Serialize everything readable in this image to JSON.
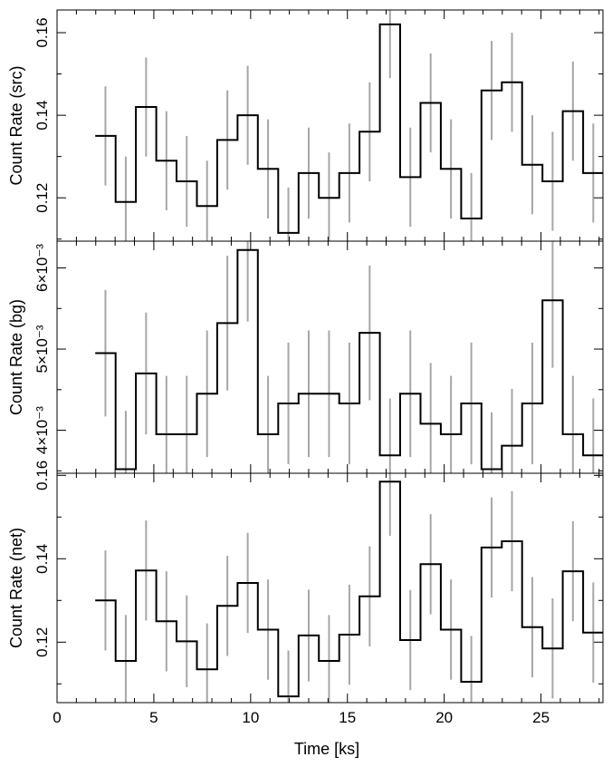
{
  "chart_data": {
    "type": "line",
    "style": "step-histogram-with-error-bars",
    "x_axis": {
      "label": "Time [ks]",
      "range": [
        0,
        28.2
      ],
      "major_ticks": [
        0,
        5,
        10,
        15,
        20,
        25
      ],
      "tick_labels": [
        "0",
        "5",
        "10",
        "15",
        "20",
        "25"
      ]
    },
    "bin_width": 1.05,
    "x": [
      2.5,
      3.55,
      4.6,
      5.65,
      6.7,
      7.75,
      8.8,
      9.85,
      10.9,
      11.95,
      13.0,
      14.05,
      15.1,
      16.15,
      17.2,
      18.25,
      19.3,
      20.35,
      21.4,
      22.45,
      23.5,
      24.55,
      25.6,
      26.65,
      27.7
    ],
    "panels": [
      {
        "name": "src",
        "ylabel": "Count Rate (src)",
        "ylim": [
          0.1095,
          0.1655
        ],
        "tick_values": [
          0.12,
          0.14,
          0.16
        ],
        "tick_labels": [
          "0.12",
          "0.14",
          "0.16"
        ],
        "values": [
          0.135,
          0.119,
          0.142,
          0.129,
          0.124,
          0.118,
          0.134,
          0.14,
          0.127,
          0.1115,
          0.126,
          0.12,
          0.126,
          0.136,
          0.162,
          0.125,
          0.143,
          0.127,
          0.115,
          0.146,
          0.148,
          0.128,
          0.124,
          0.141,
          0.126
        ],
        "errors": [
          0.012,
          0.011,
          0.012,
          0.012,
          0.011,
          0.011,
          0.012,
          0.012,
          0.012,
          0.011,
          0.011,
          0.011,
          0.012,
          0.012,
          0.013,
          0.012,
          0.012,
          0.012,
          0.011,
          0.012,
          0.012,
          0.012,
          0.012,
          0.012,
          0.012
        ]
      },
      {
        "name": "bg",
        "ylabel": "Count Rate (bg)",
        "ylim": [
          0.00347,
          0.00633
        ],
        "tick_values": [
          0.004,
          0.005,
          0.006
        ],
        "tick_labels": [
          "4×10⁻³",
          "5×10⁻³",
          "6×10⁻³"
        ],
        "values": [
          0.00495,
          0.00352,
          0.0047,
          0.00395,
          0.00395,
          0.00445,
          0.00532,
          0.00622,
          0.00395,
          0.00433,
          0.00445,
          0.00445,
          0.00433,
          0.0052,
          0.00369,
          0.00445,
          0.00408,
          0.00395,
          0.00433,
          0.00352,
          0.00381,
          0.00433,
          0.0056,
          0.00395,
          0.00369
        ],
        "errors": [
          0.00078,
          0.00072,
          0.00075,
          0.00072,
          0.00072,
          0.00078,
          0.00083,
          0.00088,
          0.00072,
          0.00075,
          0.00078,
          0.00078,
          0.00075,
          0.00083,
          0.0007,
          0.00078,
          0.00075,
          0.00072,
          0.00075,
          0.0007,
          0.0007,
          0.00075,
          0.00083,
          0.00072,
          0.0007
        ]
      },
      {
        "name": "net",
        "ylabel": "Count Rate (net)",
        "ylim": [
          0.1055,
          0.1605
        ],
        "tick_values": [
          0.12,
          0.14,
          0.16
        ],
        "tick_labels": [
          "0.12",
          "0.14",
          "0.16"
        ],
        "values": [
          0.13,
          0.1155,
          0.1372,
          0.125,
          0.1202,
          0.1135,
          0.1287,
          0.1342,
          0.123,
          0.107,
          0.1216,
          0.1155,
          0.1218,
          0.131,
          0.1585,
          0.1205,
          0.1387,
          0.123,
          0.1105,
          0.1427,
          0.1442,
          0.1236,
          0.1185,
          0.137,
          0.1223
        ],
        "errors": [
          0.012,
          0.011,
          0.012,
          0.012,
          0.011,
          0.011,
          0.012,
          0.012,
          0.012,
          0.011,
          0.011,
          0.011,
          0.012,
          0.012,
          0.013,
          0.012,
          0.012,
          0.012,
          0.011,
          0.012,
          0.012,
          0.012,
          0.012,
          0.012,
          0.012
        ]
      }
    ],
    "grid": false,
    "colors": {
      "line": "#000000",
      "error_bar": "#a6a6a6"
    }
  }
}
